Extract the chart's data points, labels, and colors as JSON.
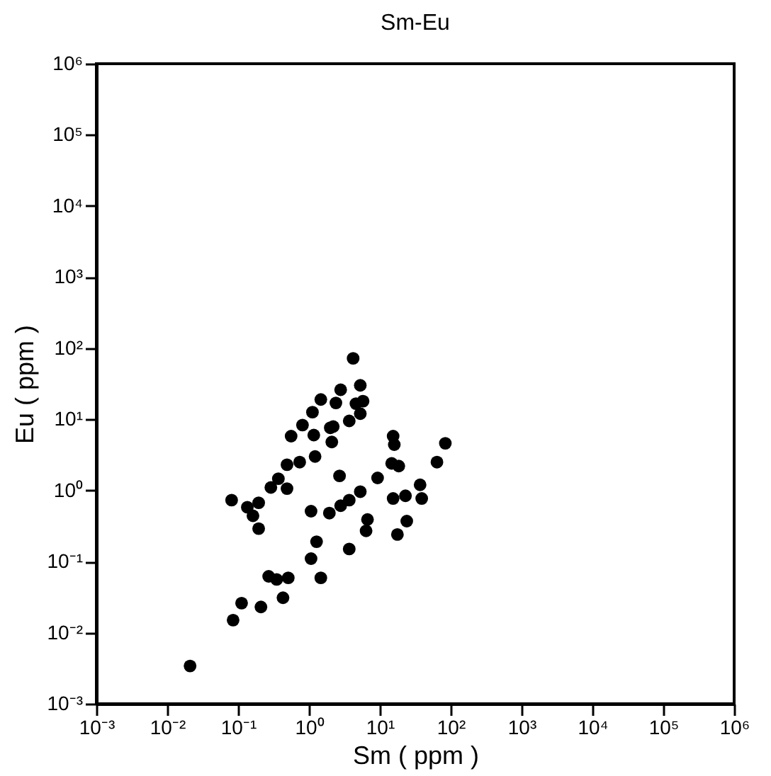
{
  "chart_data": {
    "type": "scatter",
    "title": "Sm-Eu",
    "xlabel": "Sm ( ppm )",
    "ylabel": "Eu ( ppm )",
    "log": "xy",
    "grid": false,
    "marker": "circle",
    "xlim": [
      0.001,
      1000000
    ],
    "ylim": [
      0.001,
      1000000
    ],
    "xticks": [
      {
        "value": 0.001,
        "label": "10⁻³"
      },
      {
        "value": 0.01,
        "label": "10⁻²"
      },
      {
        "value": 0.1,
        "label": "10⁻¹"
      },
      {
        "value": 1,
        "label": "10⁰"
      },
      {
        "value": 10,
        "label": "10¹"
      },
      {
        "value": 100,
        "label": "10²"
      },
      {
        "value": 1000,
        "label": "10³"
      },
      {
        "value": 10000,
        "label": "10⁴"
      },
      {
        "value": 100000,
        "label": "10⁵"
      },
      {
        "value": 1000000,
        "label": "10⁶"
      }
    ],
    "yticks": [
      {
        "value": 0.001,
        "label": "10⁻³"
      },
      {
        "value": 0.01,
        "label": "10⁻²"
      },
      {
        "value": 0.1,
        "label": "10⁻¹"
      },
      {
        "value": 1,
        "label": "10⁰"
      },
      {
        "value": 10,
        "label": "10¹"
      },
      {
        "value": 100,
        "label": "10²"
      },
      {
        "value": 1000,
        "label": "10³"
      },
      {
        "value": 10000,
        "label": "10⁴"
      },
      {
        "value": 100000,
        "label": "10⁵"
      },
      {
        "value": 1000000,
        "label": "10⁶"
      }
    ],
    "series": [
      {
        "color": "#000000",
        "x": [
          1.47,
          1.12,
          0.81,
          1.17,
          0.56,
          1.22,
          0.74,
          0.49,
          0.37,
          0.29,
          0.49,
          0.081,
          0.195,
          0.135,
          0.162,
          0.195,
          1.07,
          1.94,
          1.28,
          1.07,
          1.47,
          0.27,
          0.35,
          0.51,
          0.43,
          0.112,
          0.21,
          0.085,
          0.021,
          2.0,
          2.1,
          4.2,
          5.3,
          2.8,
          2.4,
          4.6,
          5.8,
          5.3,
          3.7,
          2.2,
          15.4,
          16,
          84,
          64,
          14.7,
          18.5,
          9.3,
          2.7,
          37,
          15.4,
          23,
          39,
          5.3,
          3.7,
          2.8,
          6.7,
          6.4,
          24,
          17.7,
          3.7
        ],
        "values": [
          19,
          12.6,
          8.3,
          6.0,
          5.8,
          3.0,
          2.5,
          2.3,
          1.46,
          1.1,
          1.06,
          0.73,
          0.67,
          0.58,
          0.44,
          0.29,
          0.51,
          0.48,
          0.19,
          0.11,
          0.059,
          0.062,
          0.056,
          0.059,
          0.031,
          0.026,
          0.023,
          0.015,
          0.0034,
          7.6,
          4.8,
          72,
          30,
          26,
          17,
          16.6,
          18,
          12,
          9.5,
          7.9,
          5.8,
          4.4,
          4.6,
          2.5,
          2.4,
          2.2,
          1.5,
          1.6,
          1.2,
          0.77,
          0.84,
          0.77,
          0.96,
          0.73,
          0.61,
          0.39,
          0.27,
          0.37,
          0.24,
          0.15
        ]
      }
    ]
  }
}
